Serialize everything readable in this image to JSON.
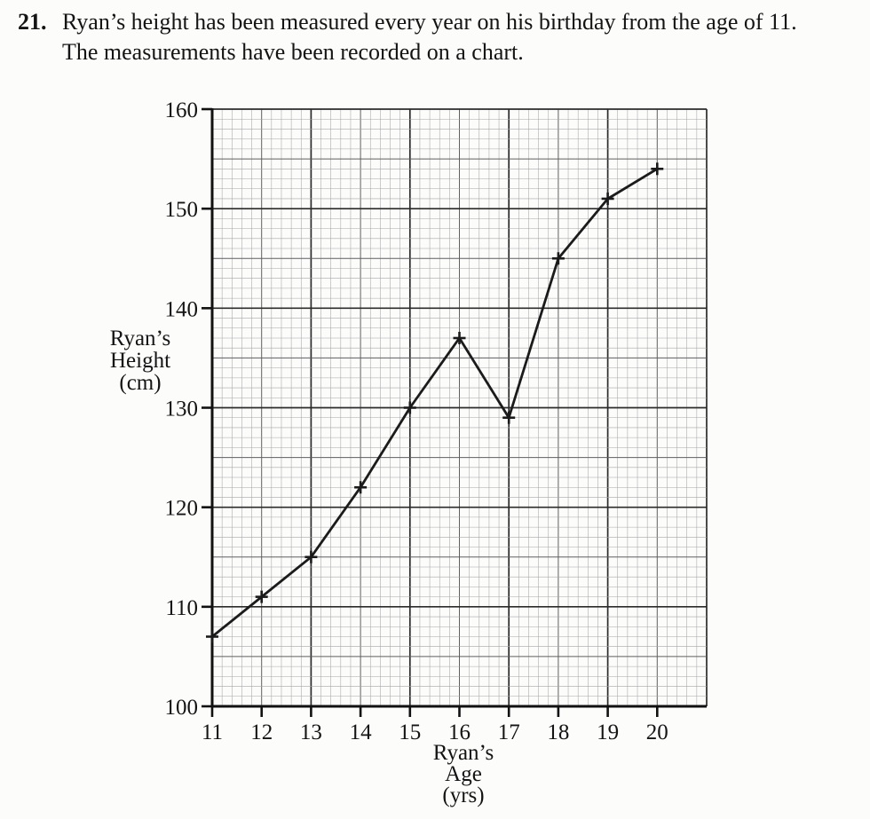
{
  "question": {
    "number": "21.",
    "line1": "Ryan’s height has been measured every year on his birthday from the age of 11.",
    "line2": "The measurements have been recorded on a chart."
  },
  "chart_data": {
    "type": "line",
    "title": "",
    "series_name": "Ryan's height by age",
    "x": [
      11,
      12,
      13,
      14,
      15,
      16,
      17,
      18,
      19,
      20
    ],
    "values": [
      107,
      111,
      115,
      122,
      130,
      137,
      129,
      145,
      151,
      154
    ],
    "x_ticks": [
      "11",
      "12",
      "13",
      "14",
      "15",
      "16",
      "17",
      "18",
      "19",
      "20"
    ],
    "y_ticks": [
      "100",
      "110",
      "120",
      "130",
      "140",
      "150",
      "160"
    ],
    "y_tick_values": [
      100,
      110,
      120,
      130,
      140,
      150,
      160
    ],
    "xlabel_lines": [
      "Ryan’s",
      "Age",
      "(yrs)"
    ],
    "ylabel_lines": [
      "Ryan’s",
      "Height",
      "(cm)"
    ],
    "xlim": [
      11,
      21
    ],
    "ylim": [
      100,
      160
    ],
    "grid": "graph-paper",
    "marker": "plus",
    "legend": "none",
    "colors": {
      "line": "#1b1b1b",
      "axis": "#111111",
      "grid_fine": "#a6a6a6",
      "grid_medium": "#5f5f5f",
      "grid_heavy": "#2b2b2b",
      "text": "#141414",
      "background": "#fcfcfb"
    }
  }
}
